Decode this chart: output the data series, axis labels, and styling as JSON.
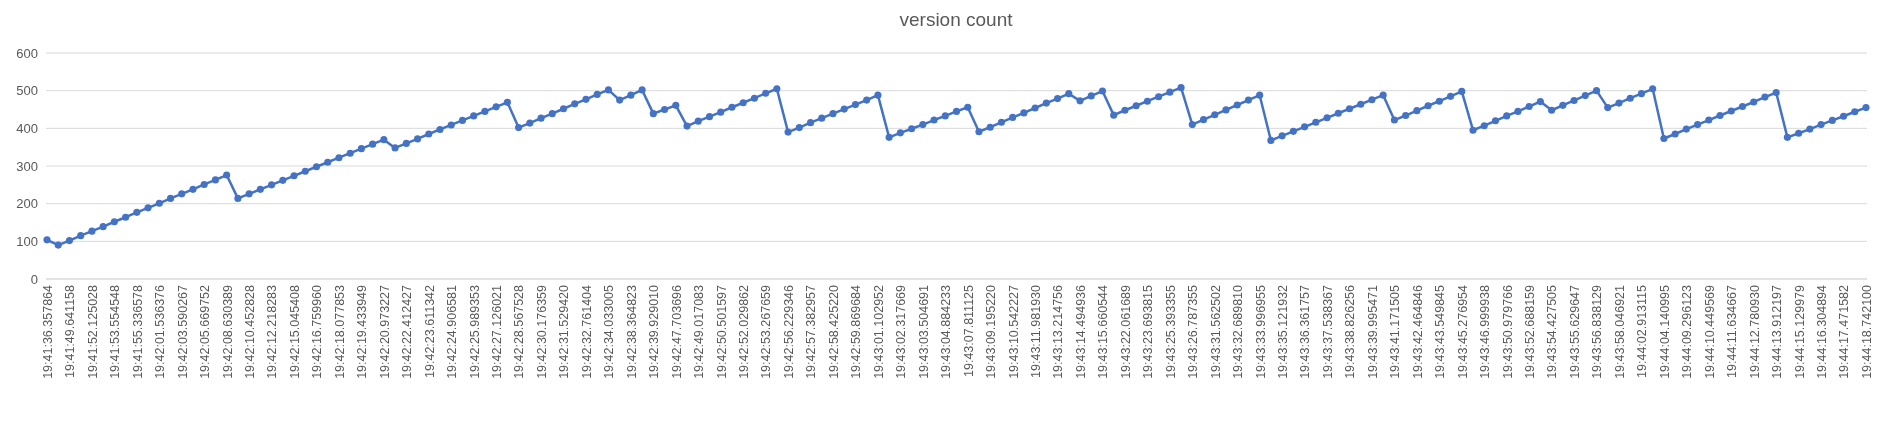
{
  "chart_data": {
    "type": "line",
    "title": "version count",
    "categories": [
      "19:41:36.357864",
      null,
      "19:41:49.641158",
      null,
      "19:41:52.125028",
      null,
      "19:41:53.554548",
      null,
      "19:41:55.336578",
      null,
      "19:42:01.536376",
      null,
      "19:42:03.590267",
      null,
      "19:42:05.669752",
      null,
      "19:42:08.630389",
      null,
      "19:42:10.452828",
      null,
      "19:42:12.218283",
      null,
      "19:42:15.045408",
      null,
      "19:42:16.759960",
      null,
      "19:42:18.077853",
      null,
      "19:42:19.433949",
      null,
      "19:42:20.973227",
      null,
      "19:42:22.412427",
      null,
      "19:42:23.611342",
      null,
      "19:42:24.906581",
      null,
      "19:42:25.989353",
      null,
      "19:42:27.126021",
      null,
      "19:42:28.567528",
      null,
      "19:42:30.176359",
      null,
      "19:42:31.529420",
      null,
      "19:42:32.761404",
      null,
      "19:42:34.033005",
      null,
      "19:42:38.364823",
      null,
      "19:42:39.929010",
      null,
      "19:42:47.703696",
      null,
      "19:42:49.017083",
      null,
      "19:42:50.501597",
      null,
      "19:42:52.029862",
      null,
      "19:42:53.267659",
      null,
      "19:42:56.229346",
      null,
      "19:42:57.382957",
      null,
      "19:42:58.425220",
      null,
      "19:42:59.869684",
      null,
      "19:43:01.102952",
      null,
      "19:43:02.317669",
      null,
      "19:43:03.504691",
      null,
      "19:43:04.884233",
      null,
      "19:43:07.811125",
      null,
      "19:43:09.195220",
      null,
      "19:43:10.542227",
      null,
      "19:43:11.981930",
      null,
      "19:43:13.214756",
      null,
      "19:43:14.494936",
      null,
      "19:43:15.660544",
      null,
      "19:43:22.061689",
      null,
      "19:43:23.693815",
      null,
      "19:43:25.393355",
      null,
      "19:43:26.787355",
      null,
      "19:43:31.562502",
      null,
      "19:43:32.689810",
      null,
      "19:43:33.996955",
      null,
      "19:43:35.121932",
      null,
      "19:43:36.361757",
      null,
      "19:43:37.538367",
      null,
      "19:43:38.826256",
      null,
      "19:43:39.995471",
      null,
      "19:43:41.171505",
      null,
      "19:43:42.464846",
      null,
      "19:43:43.549845",
      null,
      "19:43:45.276954",
      null,
      "19:43:46.999938",
      null,
      "19:43:50.979766",
      null,
      "19:43:52.688159",
      null,
      "19:43:54.427505",
      null,
      "19:43:55.629647",
      null,
      "19:43:56.838129",
      null,
      "19:43:58.046921",
      null,
      "19:44:02.913115",
      null,
      "19:44:04.140995",
      null,
      "19:44:09.296123",
      null,
      "19:44:10.449569",
      null,
      "19:44:11.634667",
      null,
      "19:44:12.780930",
      null,
      "19:44:13.912197",
      null,
      "19:44:15.129979",
      null,
      "19:44:16.304894",
      null,
      "19:44:17.471582",
      null,
      "19:44:18.742100"
    ],
    "series": [
      {
        "color": "#4472c4",
        "values": [
          104,
          90,
          102,
          115,
          127,
          139,
          152,
          164,
          177,
          189,
          201,
          214,
          226,
          238,
          251,
          263,
          276,
          214,
          226,
          238,
          250,
          262,
          274,
          286,
          298,
          310,
          322,
          334,
          346,
          358,
          370,
          348,
          360,
          372,
          385,
          397,
          409,
          421,
          433,
          445,
          457,
          469,
          402,
          414,
          427,
          439,
          452,
          465,
          477,
          490,
          502,
          475,
          488,
          502,
          439,
          450,
          461,
          406,
          419,
          431,
          443,
          456,
          468,
          480,
          493,
          505,
          390,
          402,
          415,
          427,
          439,
          451,
          463,
          475,
          488,
          376,
          388,
          399,
          410,
          422,
          433,
          445,
          456,
          391,
          403,
          416,
          429,
          441,
          454,
          467,
          479,
          492,
          473,
          486,
          499,
          435,
          448,
          460,
          472,
          484,
          496,
          508,
          410,
          423,
          436,
          449,
          462,
          475,
          488,
          368,
          380,
          392,
          404,
          416,
          428,
          440,
          452,
          464,
          476,
          488,
          422,
          434,
          447,
          460,
          472,
          485,
          498,
          395,
          407,
          420,
          433,
          445,
          458,
          471,
          448,
          461,
          474,
          487,
          500,
          455,
          467,
          480,
          492,
          505,
          373,
          385,
          398,
          410,
          422,
          434,
          446,
          458,
          470,
          483,
          495,
          376,
          387,
          398,
          410,
          421,
          432,
          444,
          455
        ]
      }
    ],
    "ylim": [
      0,
      600
    ],
    "yticks": [
      0,
      100,
      200,
      300,
      400,
      500,
      600
    ],
    "grid": true,
    "marker": "circle",
    "line_style": "solid"
  }
}
